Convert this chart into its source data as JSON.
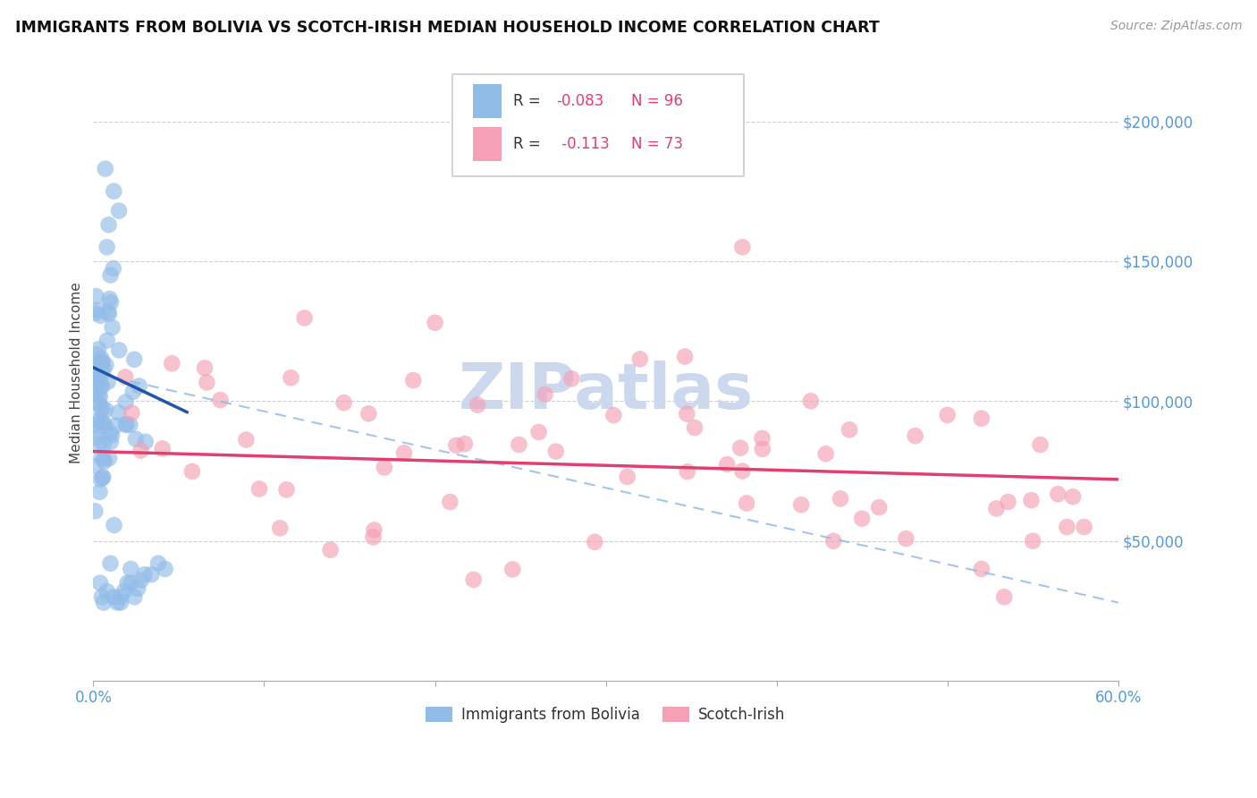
{
  "title": "IMMIGRANTS FROM BOLIVIA VS SCOTCH-IRISH MEDIAN HOUSEHOLD INCOME CORRELATION CHART",
  "source_text": "Source: ZipAtlas.com",
  "ylabel": "Median Household Income",
  "xlim": [
    0.0,
    0.6
  ],
  "ylim": [
    0,
    220000
  ],
  "blue_color": "#92bce8",
  "pink_color": "#f5a0b5",
  "blue_line_color": "#2255aa",
  "pink_line_color": "#e04070",
  "dashed_line_color": "#92bce8",
  "grid_color": "#bbbbbb",
  "title_color": "#111111",
  "axis_label_color": "#444444",
  "right_tick_color": "#5599dd",
  "bottom_tick_color": "#5599dd",
  "watermark_color": "#ccd8ee",
  "legend_r1": "R = -0.083",
  "legend_n1": "N = 96",
  "legend_r2": "R =  -0.113",
  "legend_n2": "N = 73",
  "blue_line_x0": 0.0,
  "blue_line_x1": 0.055,
  "blue_line_y0": 112000,
  "blue_line_y1": 96000,
  "pink_line_x0": 0.0,
  "pink_line_x1": 0.6,
  "pink_line_y0": 82000,
  "pink_line_y1": 72000,
  "dash_line_x0": 0.0,
  "dash_line_x1": 0.6,
  "dash_line_y0": 110000,
  "dash_line_y1": 28000
}
